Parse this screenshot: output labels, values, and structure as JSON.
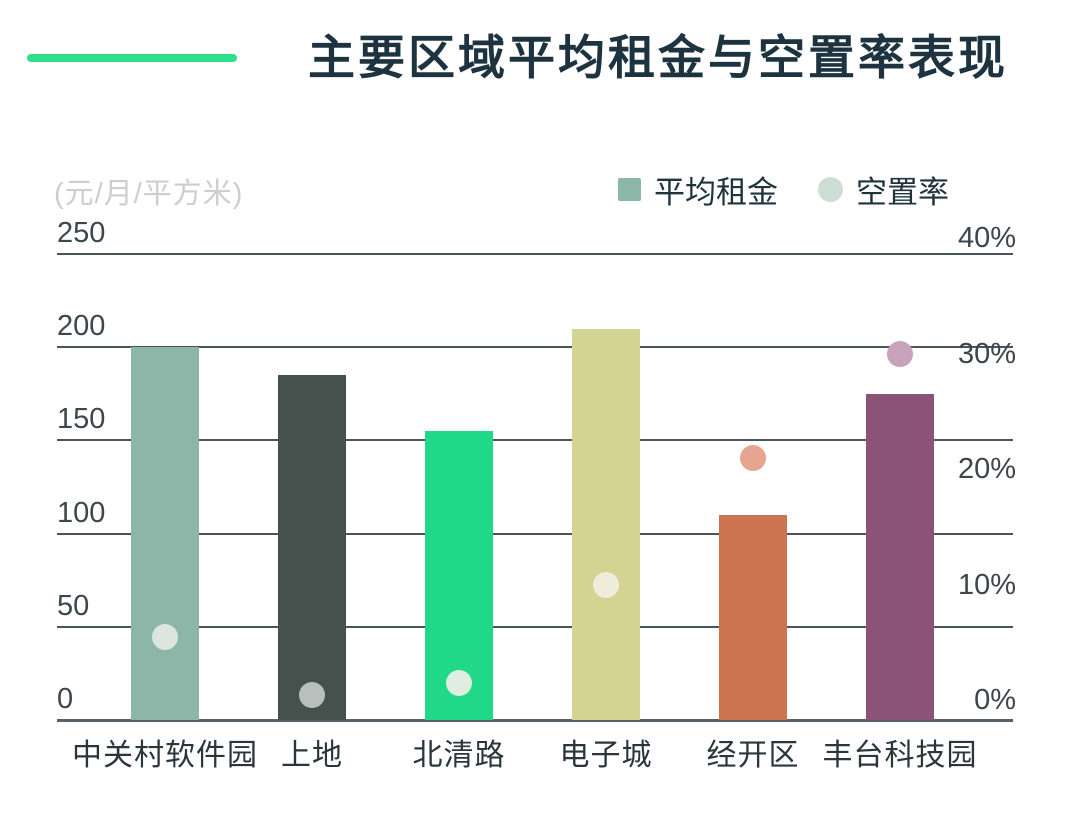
{
  "page": {
    "background": "#ffffff"
  },
  "header": {
    "title": "主要区域平均租金与空置率表现",
    "title_color": "#1d3340",
    "accent_bar_color": "#2ee08c"
  },
  "legend": {
    "rent_label": "平均租金",
    "vacancy_label": "空置率",
    "rent_swatch_color": "#8cb7a8",
    "vacancy_swatch_color": "#ccded3",
    "text_color": "#20343c"
  },
  "chart_data": {
    "type": "bar",
    "secondary_type": "scatter",
    "title": "主要区域平均租金与空置率表现",
    "categories": [
      "中关村软件园",
      "上地",
      "北清路",
      "电子城",
      "经开区",
      "丰台科技园"
    ],
    "series": [
      {
        "name": "平均租金",
        "type": "bar",
        "axis": "left",
        "unit": "元/月/平方米",
        "values": [
          200,
          185,
          155,
          210,
          110,
          175
        ],
        "colors": [
          "#8cb7a8",
          "#46504d",
          "#21d888",
          "#d5d391",
          "#ce7350",
          "#8b5375"
        ]
      },
      {
        "name": "空置率",
        "type": "scatter",
        "axis": "right",
        "unit": "%",
        "values": [
          5.5,
          0.5,
          1.5,
          10,
          21,
          30
        ],
        "colors": [
          "#dce5de",
          "#b8c0bd",
          "#dfede3",
          "#efecdc",
          "#e6a590",
          "#c7a2bb"
        ]
      }
    ],
    "left_axis": {
      "unit_label": "(元/月/平方米)",
      "ticks": [
        250,
        200,
        150,
        100,
        50,
        0
      ],
      "range": [
        0,
        250
      ]
    },
    "right_axis": {
      "tick_labels": [
        "40%",
        "30%",
        "20%",
        "10%",
        "0%"
      ],
      "tick_values": [
        40,
        30,
        20,
        10,
        0
      ],
      "range": [
        0,
        40
      ]
    },
    "grid": true,
    "legend_position": "top-right",
    "xlabel": "",
    "ylabel": "元/月/平方米"
  },
  "colors": {
    "axis_text": "#3d474b",
    "category_text": "#2b363b",
    "gridline": "#4a545e",
    "baseline": "#59616a",
    "unit_text": "#cdcfca"
  }
}
